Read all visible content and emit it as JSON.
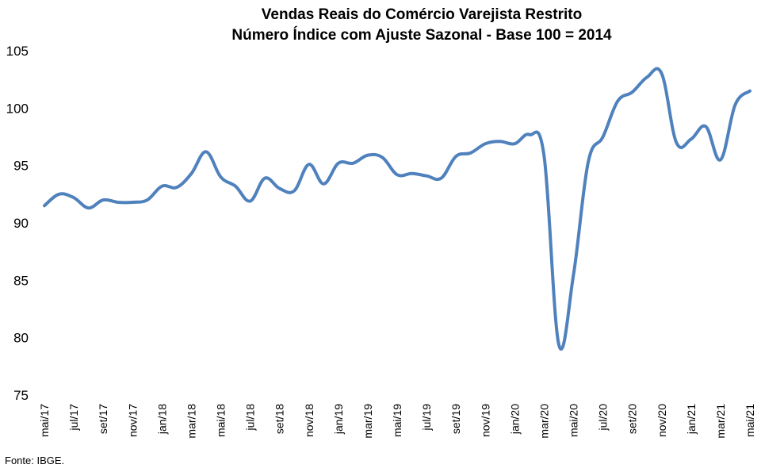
{
  "chart_data": {
    "type": "line",
    "title": "Vendas Reais do Comércio Varejista Restrito",
    "subtitle": "Número Índice com Ajuste Sazonal - Base 100 = 2014",
    "xlabel": "",
    "ylabel": "",
    "ylim": [
      75,
      105
    ],
    "yticks": [
      "75",
      "80",
      "85",
      "90",
      "95",
      "100",
      "105"
    ],
    "grid": false,
    "series_color": "#4F81BD",
    "x": [
      "mai/17",
      "jun/17",
      "jul/17",
      "ago/17",
      "set/17",
      "out/17",
      "nov/17",
      "dez/17",
      "jan/18",
      "fev/18",
      "mar/18",
      "abr/18",
      "mai/18",
      "jun/18",
      "jul/18",
      "ago/18",
      "set/18",
      "out/18",
      "nov/18",
      "dez/18",
      "jan/19",
      "fev/19",
      "mar/19",
      "abr/19",
      "mai/19",
      "jun/19",
      "jul/19",
      "ago/19",
      "set/19",
      "out/19",
      "nov/19",
      "dez/19",
      "jan/20",
      "fev/20",
      "mar/20",
      "abr/20",
      "mai/20",
      "jun/20",
      "jul/20",
      "ago/20",
      "set/20",
      "out/20",
      "nov/20",
      "dez/20",
      "jan/21",
      "fev/21",
      "mar/21",
      "abr/21",
      "mai/21"
    ],
    "x_tick_labels": [
      "mai/17",
      "jul/17",
      "set/17",
      "nov/17",
      "jan/18",
      "mar/18",
      "mai/18",
      "jul/18",
      "set/18",
      "nov/18",
      "jan/19",
      "mar/19",
      "mai/19",
      "jul/19",
      "set/19",
      "nov/19",
      "jan/20",
      "mar/20",
      "mai/20",
      "jul/20",
      "set/20",
      "nov/20",
      "jan/21",
      "mar/21",
      "mai/21"
    ],
    "series": [
      {
        "values": [
          91.5,
          92.5,
          92.2,
          91.3,
          92.0,
          91.8,
          91.8,
          92.0,
          93.2,
          93.1,
          94.3,
          96.2,
          94.0,
          93.2,
          91.9,
          93.9,
          93.0,
          92.8,
          95.1,
          93.4,
          95.2,
          95.2,
          95.9,
          95.7,
          94.2,
          94.3,
          94.1,
          93.9,
          95.8,
          96.1,
          96.9,
          97.1,
          96.9,
          97.7,
          95.8,
          79.4,
          85.5,
          95.3,
          97.5,
          100.6,
          101.4,
          102.7,
          103.0,
          97.0,
          97.3,
          98.4,
          95.5,
          100.3,
          101.5
        ]
      }
    ]
  },
  "source": "Fonte: IBGE."
}
